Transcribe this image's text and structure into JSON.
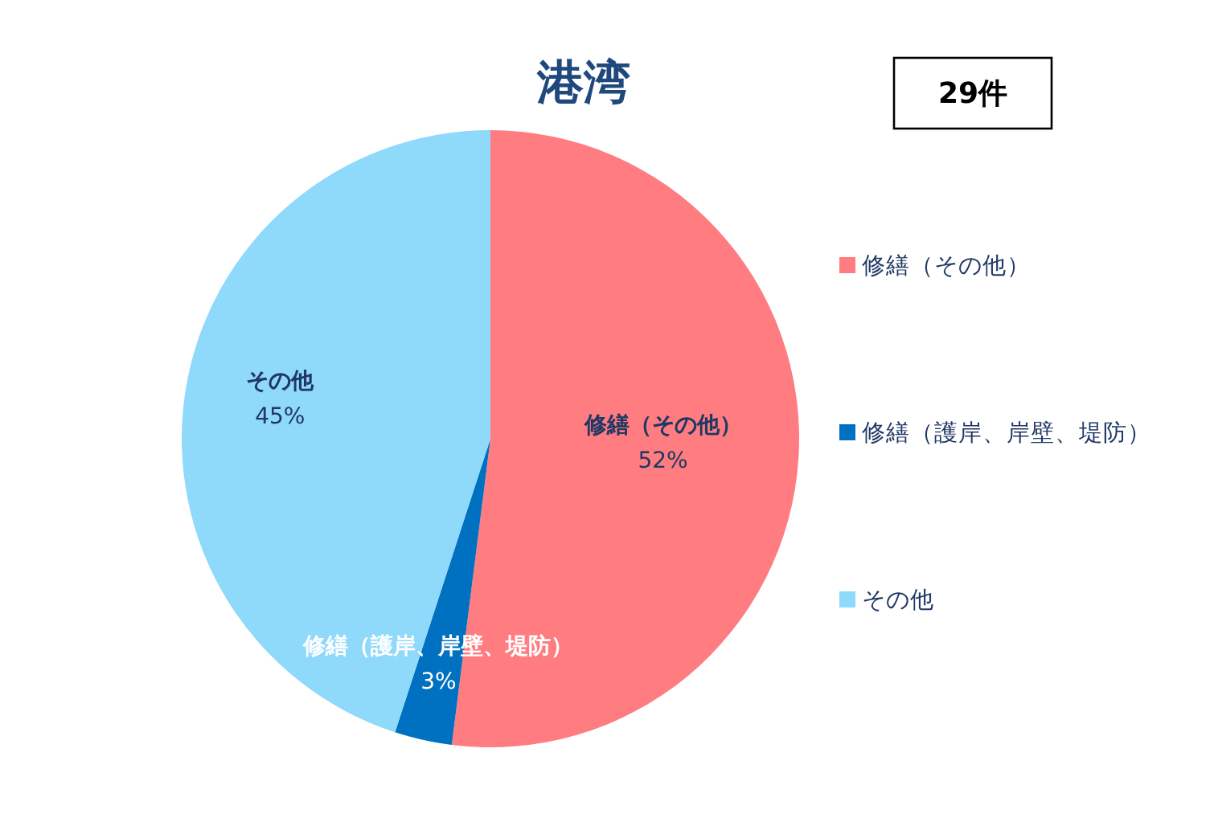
{
  "chart_data": {
    "type": "pie",
    "title": "港湾",
    "categories": [
      "修繕（その他）",
      "修繕（護岸、岸壁、堤防）",
      "その他"
    ],
    "values": [
      52,
      3,
      45
    ],
    "colors": [
      "#ff7c80",
      "#0070c0",
      "#8fd9fb"
    ],
    "value_labels": [
      "52%",
      "3%",
      "45%"
    ],
    "legend": "right",
    "annotations": [
      "29件"
    ]
  }
}
